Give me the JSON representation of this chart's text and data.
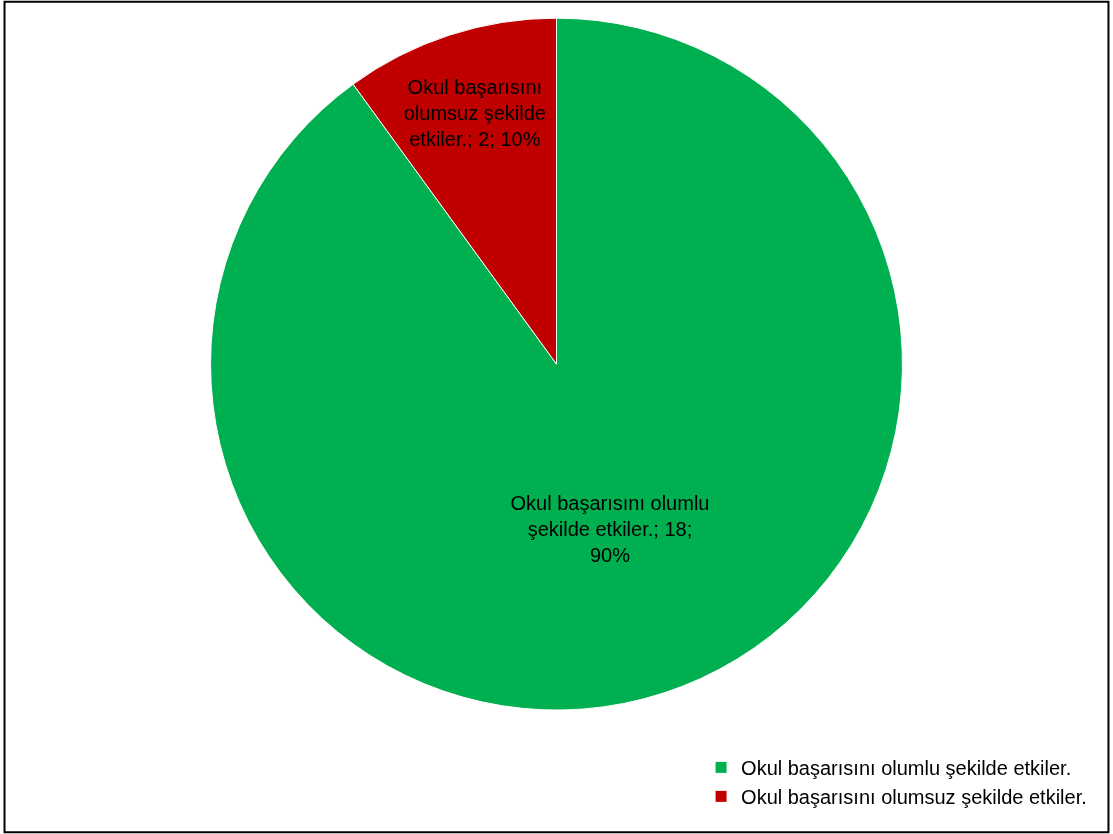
{
  "chart_data": {
    "type": "pie",
    "categories": [
      "Okul başarısını olumlu şekilde etkiler.",
      "Okul başarısını olumsuz şekilde etkiler."
    ],
    "values": [
      18,
      2
    ],
    "colors": [
      "#00b050",
      "#c00000"
    ],
    "value_labels": [
      "Okul başarısını olumlu şekilde etkiler.; 18; 90%",
      "Okul başarısını olumsuz şekilde etkiler.; 2; 10%"
    ],
    "legend": "bottom right"
  }
}
